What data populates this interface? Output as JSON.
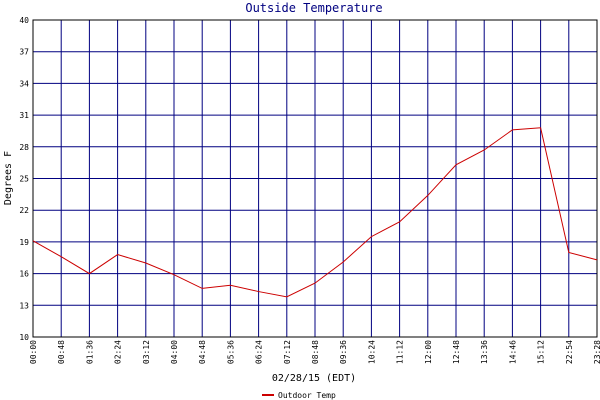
{
  "chart_data": {
    "type": "line",
    "title": "Outside Temperature",
    "y_label": "Degrees F",
    "x_label": "02/28/15 (EDT)",
    "categories": [
      "00:00",
      "00:48",
      "01:36",
      "02:24",
      "03:12",
      "04:00",
      "04:48",
      "05:36",
      "06:24",
      "07:12",
      "08:48",
      "09:36",
      "10:24",
      "11:12",
      "12:00",
      "12:48",
      "13:36",
      "14:46",
      "15:12",
      "22:54",
      "23:28"
    ],
    "series": [
      {
        "name": "Outdoor Temp",
        "color": "#cc0000",
        "values": [
          19.1,
          17.6,
          16.0,
          17.8,
          17.0,
          15.9,
          14.6,
          14.9,
          14.3,
          13.8,
          15.1,
          17.1,
          19.5,
          20.9,
          23.4,
          26.3,
          27.7,
          29.6,
          29.8,
          18.0,
          17.3
        ]
      }
    ],
    "ylim": [
      10,
      40
    ],
    "yticks": [
      10,
      13,
      16,
      19,
      22,
      25,
      28,
      31,
      34,
      37,
      40
    ],
    "grid": true,
    "grid_color": "#000080",
    "legend": "bottom"
  }
}
